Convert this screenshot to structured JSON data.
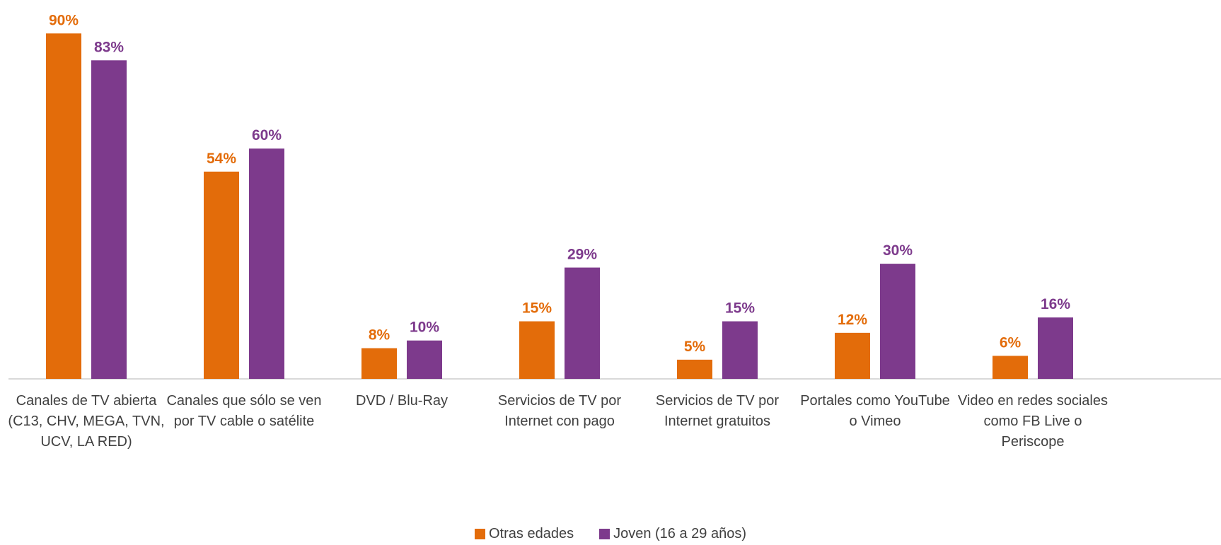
{
  "chart_data": {
    "type": "bar",
    "categories": [
      [
        "Canales de TV abierta",
        "(C13, CHV, MEGA, TVN,",
        "UCV, LA RED)"
      ],
      [
        "Canales que sólo se ven",
        "por TV cable o satélite"
      ],
      [
        "DVD / Blu-Ray"
      ],
      [
        "Servicios de TV por",
        "Internet con pago"
      ],
      [
        "Servicios de TV por",
        "Internet gratuitos"
      ],
      [
        "Portales como YouTube",
        "o Vimeo"
      ],
      [
        "Video en redes sociales",
        "como FB Live o",
        "Periscope"
      ]
    ],
    "series": [
      {
        "name": "Otras edades",
        "color": "#E36C0A",
        "values": [
          90,
          54,
          8,
          15,
          5,
          12,
          6
        ],
        "labels": [
          "90%",
          "54%",
          "8%",
          "15%",
          "5%",
          "12%",
          "6%"
        ]
      },
      {
        "name": "Joven (16 a 29 años)",
        "color": "#7D3A8C",
        "values": [
          83,
          60,
          10,
          29,
          15,
          30,
          16
        ],
        "labels": [
          "83%",
          "60%",
          "10%",
          "29%",
          "15%",
          "30%",
          "16%"
        ]
      }
    ],
    "ylim": [
      0,
      90
    ],
    "grid": false,
    "legend_position": "bottom-center"
  }
}
